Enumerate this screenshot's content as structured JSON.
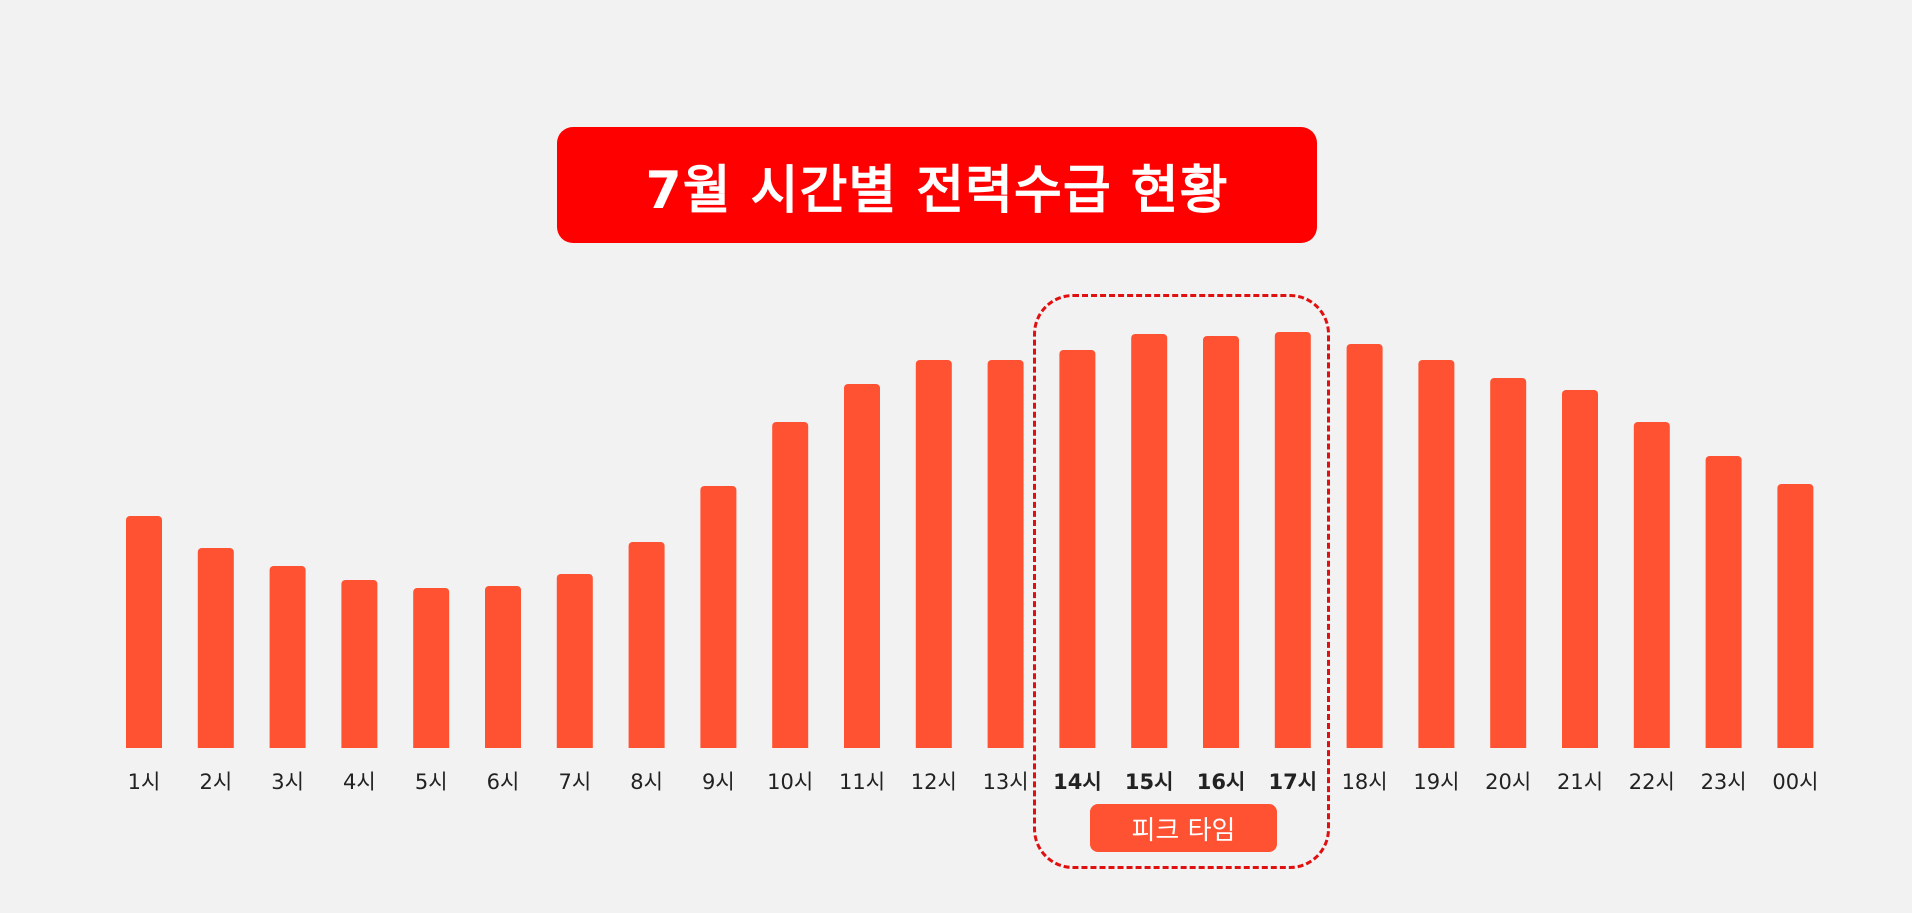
{
  "title": "7월 시간별 전력수급 현황",
  "peak_label": "피크 타임",
  "colors": {
    "bar": "#ff5232",
    "title_bg": "#ff0000",
    "peak_border": "#e01010",
    "background": "#f2f2f2",
    "label": "#222222"
  },
  "chart_data": {
    "type": "bar",
    "title": "7월 시간별 전력수급 현황",
    "xlabel": "",
    "ylabel": "",
    "categories": [
      "1시",
      "2시",
      "3시",
      "4시",
      "5시",
      "6시",
      "7시",
      "8시",
      "9시",
      "10시",
      "11시",
      "12시",
      "13시",
      "14시",
      "15시",
      "16시",
      "17시",
      "18시",
      "19시",
      "20시",
      "21시",
      "22시",
      "23시",
      "00시"
    ],
    "values": [
      58,
      50,
      45.5,
      42,
      40,
      40.5,
      43.5,
      51.5,
      65.5,
      81.5,
      91,
      97,
      97,
      99.5,
      103.5,
      103,
      104,
      101,
      97,
      92.5,
      89.5,
      81.5,
      73,
      66
    ],
    "highlight": [
      "14시",
      "15시",
      "16시",
      "17시"
    ],
    "ylim": [
      0,
      110
    ],
    "grid": false,
    "legend": "none"
  }
}
